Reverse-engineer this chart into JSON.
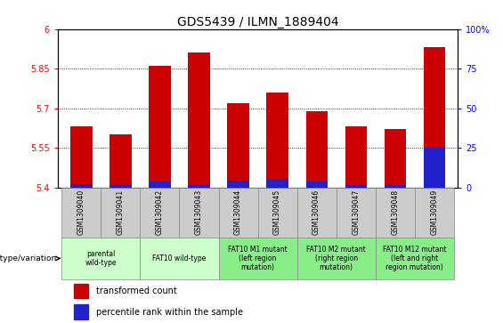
{
  "title": "GDS5439 / ILMN_1889404",
  "samples": [
    "GSM1309040",
    "GSM1309041",
    "GSM1309042",
    "GSM1309043",
    "GSM1309044",
    "GSM1309045",
    "GSM1309046",
    "GSM1309047",
    "GSM1309048",
    "GSM1309049"
  ],
  "transformed_count": [
    5.63,
    5.6,
    5.86,
    5.91,
    5.72,
    5.76,
    5.69,
    5.63,
    5.62,
    5.93
  ],
  "percentile_rank": [
    2.0,
    1.5,
    3.5,
    1.5,
    4.0,
    5.0,
    3.5,
    1.5,
    1.5,
    25.0
  ],
  "ymin": 5.4,
  "ymax": 6.0,
  "yticks_left": [
    5.4,
    5.55,
    5.7,
    5.85,
    6.0
  ],
  "ytick_labels_left": [
    "5.4",
    "5.55",
    "5.7",
    "5.85",
    "6"
  ],
  "right_ytick_pcts": [
    0,
    25,
    50,
    75,
    100
  ],
  "right_ytick_labels": [
    "0",
    "25",
    "50",
    "75",
    "100%"
  ],
  "bar_color_red": "#cc0000",
  "bar_color_blue": "#2222cc",
  "bar_width": 0.55,
  "grid_lines": [
    5.55,
    5.7,
    5.85
  ],
  "groups": [
    {
      "label": "parental\nwild-type",
      "color": "#ccffcc",
      "start": 0,
      "end": 1
    },
    {
      "label": "FAT10 wild-type",
      "color": "#ccffcc",
      "start": 2,
      "end": 3
    },
    {
      "label": "FAT10 M1 mutant\n(left region\nmutation)",
      "color": "#88ee88",
      "start": 4,
      "end": 5
    },
    {
      "label": "FAT10 M2 mutant\n(right region\nmutation)",
      "color": "#88ee88",
      "start": 6,
      "end": 7
    },
    {
      "label": "FAT10 M12 mutant\n(left and right\nregion mutation)",
      "color": "#88ee88",
      "start": 8,
      "end": 9
    }
  ],
  "sample_row_color": "#cccccc",
  "genotype_label": "genotype/variation",
  "legend_red_label": "transformed count",
  "legend_blue_label": "percentile rank within the sample",
  "title_fontsize": 10,
  "axis_fontsize": 7,
  "sample_fontsize": 5.5,
  "group_fontsize": 5.5,
  "legend_fontsize": 7
}
